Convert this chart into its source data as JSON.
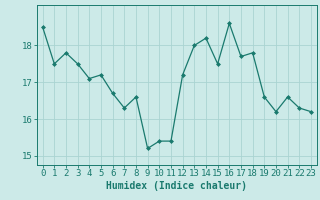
{
  "x": [
    0,
    1,
    2,
    3,
    4,
    5,
    6,
    7,
    8,
    9,
    10,
    11,
    12,
    13,
    14,
    15,
    16,
    17,
    18,
    19,
    20,
    21,
    22,
    23
  ],
  "y": [
    18.5,
    17.5,
    17.8,
    17.5,
    17.1,
    17.2,
    16.7,
    16.3,
    16.6,
    15.2,
    15.4,
    15.4,
    17.2,
    18.0,
    18.2,
    17.5,
    18.6,
    17.7,
    17.8,
    16.6,
    16.2,
    16.6,
    16.3,
    16.2
  ],
  "xlabel": "Humidex (Indice chaleur)",
  "xlim": [
    -0.5,
    23.5
  ],
  "ylim": [
    14.75,
    19.1
  ],
  "yticks": [
    15,
    16,
    17,
    18
  ],
  "xticks": [
    0,
    1,
    2,
    3,
    4,
    5,
    6,
    7,
    8,
    9,
    10,
    11,
    12,
    13,
    14,
    15,
    16,
    17,
    18,
    19,
    20,
    21,
    22,
    23
  ],
  "line_color": "#1a7a6e",
  "marker_color": "#1a7a6e",
  "bg_color": "#cceae8",
  "grid_color": "#aad4d2",
  "axes_color": "#1a7a6e",
  "tick_color": "#1a7a6e",
  "label_color": "#1a7a6e",
  "font_size_xlabel": 7,
  "font_size_ticks": 6.5
}
